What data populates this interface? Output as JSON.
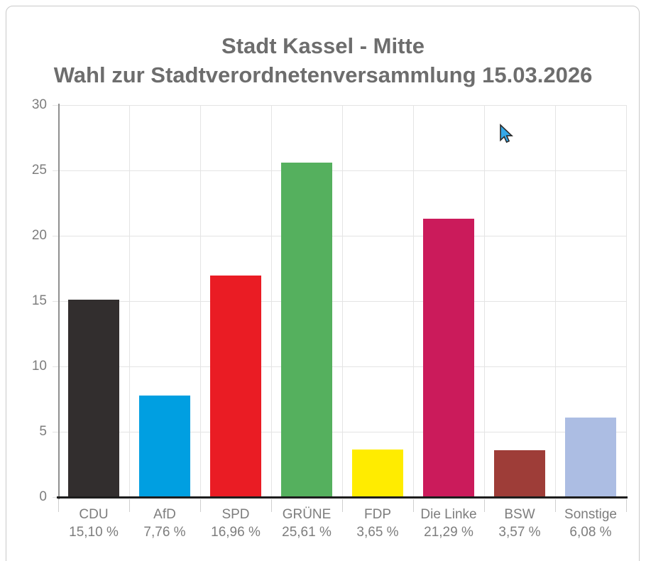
{
  "title": {
    "line1": "Stadt Kassel - Mitte",
    "line2": "Wahl zur Stadtverordnetenversammlung 15.03.2026"
  },
  "chart_data": {
    "type": "bar",
    "title": "Stadt Kassel - Mitte",
    "subtitle": "Wahl zur Stadtverordnetenversammlung 15.03.2026",
    "categories": [
      "CDU",
      "AfD",
      "SPD",
      "GRÜNE",
      "FDP",
      "Die Linke",
      "BSW",
      "Sonstige"
    ],
    "values": [
      15.1,
      7.76,
      16.96,
      25.61,
      3.65,
      21.29,
      3.57,
      6.08
    ],
    "value_labels": [
      "15,10 %",
      "7,76 %",
      "16,96 %",
      "25,61 %",
      "3,65 %",
      "21,29 %",
      "3,57 %",
      "6,08 %"
    ],
    "bar_colors": [
      "#322e2e",
      "#009fe1",
      "#ea1c24",
      "#55b05e",
      "#ffec00",
      "#cb1b5b",
      "#9e3d38",
      "#acbde3"
    ],
    "ylim": [
      0,
      30
    ],
    "yticks": [
      0,
      5,
      10,
      15,
      20,
      25,
      30
    ],
    "grid": true,
    "legend": "none",
    "xlabel": "",
    "ylabel": ""
  },
  "colors": {
    "title_text": "#6d6d6d",
    "axis_label_text": "#7d7d7d",
    "gridline": "#e4e4e4",
    "y_axis_line": "#8f8f8f",
    "x_axis_line": "#1d1d1d",
    "card_border": "#c9c9c9",
    "cursor_fill": "#35a8e8",
    "cursor_outline": "#2b2b2b"
  },
  "cursor": {
    "type": "arrow-pointer"
  }
}
